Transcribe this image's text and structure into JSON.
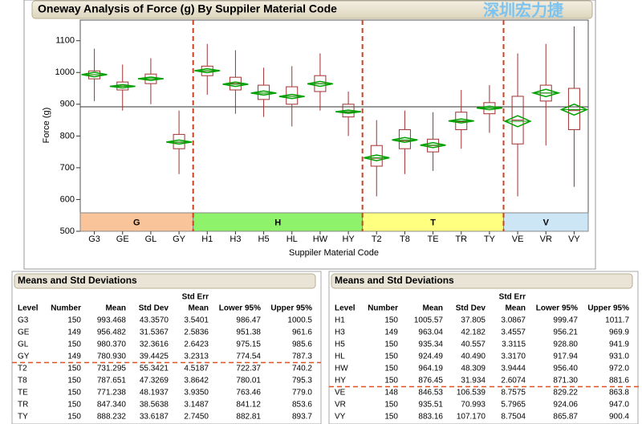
{
  "watermark": "深圳宏力捷",
  "chart_data": {
    "type": "box",
    "title": "Oneway Analysis of Force (g) By Suppiler Material Code",
    "x_label": "Suppiler Material Code",
    "y_label": "Force (g)",
    "categories": [
      "G3",
      "GE",
      "GL",
      "GY",
      "H1",
      "H3",
      "H5",
      "HL",
      "HW",
      "HY",
      "T2",
      "T8",
      "TE",
      "TR",
      "TY",
      "VE",
      "VR",
      "VY"
    ],
    "groups": [
      {
        "name": "G",
        "color": "#f9c49a"
      },
      {
        "name": "H",
        "color": "#8ef26a"
      },
      {
        "name": "T",
        "color": "#ffff80"
      },
      {
        "name": "V",
        "color": "#cce6f5"
      }
    ],
    "min": [
      910,
      880,
      900,
      680,
      930,
      870,
      860,
      830,
      880,
      800,
      610,
      680,
      690,
      760,
      810,
      610,
      770,
      640
    ],
    "q1": [
      980,
      945,
      965,
      760,
      990,
      945,
      915,
      900,
      940,
      860,
      705,
      760,
      750,
      820,
      870,
      775,
      910,
      820
    ],
    "median": [
      993,
      957,
      980,
      780,
      1005,
      965,
      935,
      925,
      965,
      875,
      730,
      785,
      770,
      845,
      888,
      850,
      935,
      880
    ],
    "q3": [
      1005,
      970,
      995,
      805,
      1020,
      985,
      960,
      955,
      990,
      900,
      770,
      820,
      790,
      875,
      905,
      925,
      960,
      950
    ],
    "max": [
      1075,
      1025,
      1045,
      880,
      1090,
      1070,
      1015,
      1020,
      1060,
      940,
      850,
      880,
      875,
      945,
      960,
      1060,
      1090,
      1145
    ],
    "mean": [
      993.468,
      956.482,
      980.37,
      780.93,
      1005.57,
      963.04,
      935.34,
      924.49,
      964.19,
      876.45,
      731.295,
      787.651,
      771.238,
      847.34,
      888.232,
      846.53,
      935.51,
      883.16
    ],
    "lower95": [
      986.47,
      951.38,
      975.15,
      774.54,
      999.47,
      956.21,
      928.8,
      917.94,
      956.4,
      871.3,
      722.37,
      780.01,
      763.46,
      841.12,
      882.81,
      829.22,
      924.06,
      865.87
    ],
    "upper95": [
      1000.5,
      961.6,
      985.6,
      787.3,
      1011.7,
      969.9,
      941.9,
      931.0,
      972.0,
      881.6,
      740.2,
      795.3,
      779.0,
      853.6,
      893.7,
      863.8,
      947.0,
      900.4
    ],
    "grand_mean": 892,
    "box_color": "#a03030",
    "diamond_color": "#00a000",
    "ylim": [
      500,
      1165
    ],
    "yticks": [
      500,
      600,
      700,
      800,
      900,
      1000,
      1100
    ]
  },
  "tables": [
    {
      "title": "Means and Std Deviations",
      "columns": [
        "Level",
        "Number",
        "Mean",
        "Std Dev",
        [
          "Std Err",
          "Mean"
        ],
        "Lower 95%",
        "Upper 95%"
      ],
      "rows": [
        [
          "G3",
          "150",
          "993.468",
          "43.3570",
          "3.5401",
          "986.47",
          "1000.5"
        ],
        [
          "GE",
          "149",
          "956.482",
          "31.5367",
          "2.5836",
          "951.38",
          "961.6"
        ],
        [
          "GL",
          "150",
          "980.370",
          "32.3616",
          "2.6423",
          "975.15",
          "985.6"
        ],
        [
          "GY",
          "149",
          "780.930",
          "39.4425",
          "3.2313",
          "774.54",
          "787.3"
        ],
        [
          "T2",
          "150",
          "731.295",
          "55.3421",
          "4.5187",
          "722.37",
          "740.2"
        ],
        [
          "T8",
          "150",
          "787.651",
          "47.3269",
          "3.8642",
          "780.01",
          "795.3"
        ],
        [
          "TE",
          "150",
          "771.238",
          "48.1937",
          "3.9350",
          "763.46",
          "779.0"
        ],
        [
          "TR",
          "150",
          "847.340",
          "38.5638",
          "3.1487",
          "841.12",
          "853.6"
        ],
        [
          "TY",
          "150",
          "888.232",
          "33.6187",
          "2.7450",
          "882.81",
          "893.7"
        ]
      ]
    },
    {
      "title": "Means and Std Deviations",
      "columns": [
        "Level",
        "Number",
        "Mean",
        "Std Dev",
        [
          "Std Err",
          "Mean"
        ],
        "Lower 95%",
        "Upper 95%"
      ],
      "rows": [
        [
          "H1",
          "150",
          "1005.57",
          "37.805",
          "3.0867",
          "999.47",
          "1011.7"
        ],
        [
          "H3",
          "149",
          "963.04",
          "42.182",
          "3.4557",
          "956.21",
          "969.9"
        ],
        [
          "H5",
          "150",
          "935.34",
          "40.557",
          "3.3115",
          "928.80",
          "941.9"
        ],
        [
          "HL",
          "150",
          "924.49",
          "40.490",
          "3.3170",
          "917.94",
          "931.0"
        ],
        [
          "HW",
          "150",
          "964.19",
          "48.309",
          "3.9444",
          "956.40",
          "972.0"
        ],
        [
          "HY",
          "150",
          "876.45",
          "31.934",
          "2.6074",
          "871.30",
          "881.6"
        ],
        [
          "VE",
          "148",
          "846.53",
          "106.539",
          "8.7575",
          "829.22",
          "863.8"
        ],
        [
          "VR",
          "150",
          "935.51",
          "70.993",
          "5.7965",
          "924.06",
          "947.0"
        ],
        [
          "VY",
          "150",
          "883.16",
          "107.170",
          "8.7504",
          "865.87",
          "900.4"
        ]
      ]
    }
  ]
}
